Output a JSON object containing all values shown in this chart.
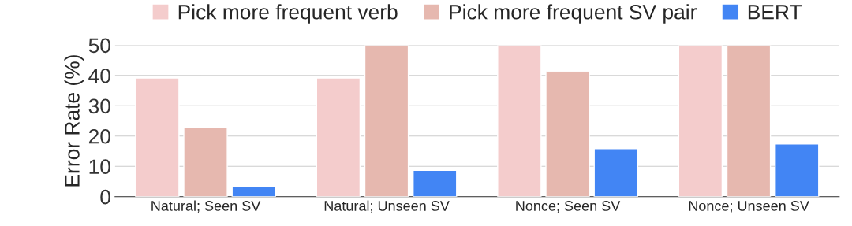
{
  "chart_data": {
    "type": "bar",
    "ylabel": "Error Rate (%)",
    "categories": [
      "Natural; Seen SV",
      "Natural; Unseen SV",
      "Nonce; Seen SV",
      "Nonce; Unseen SV"
    ],
    "series": [
      {
        "name": "Pick more frequent verb",
        "color": "#f4cccc",
        "values": [
          39.2,
          39.2,
          50,
          50
        ]
      },
      {
        "name": "Pick more frequent SV pair",
        "color": "#e6b8af",
        "values": [
          22.8,
          50,
          41.3,
          50
        ]
      },
      {
        "name": "BERT",
        "color": "#4285f4",
        "values": [
          3.4,
          8.7,
          15.8,
          17.4
        ]
      }
    ],
    "ylim": [
      0,
      50
    ],
    "yticks": [
      0,
      10,
      20,
      30,
      40,
      50
    ],
    "grid": "y",
    "legend": "top"
  }
}
